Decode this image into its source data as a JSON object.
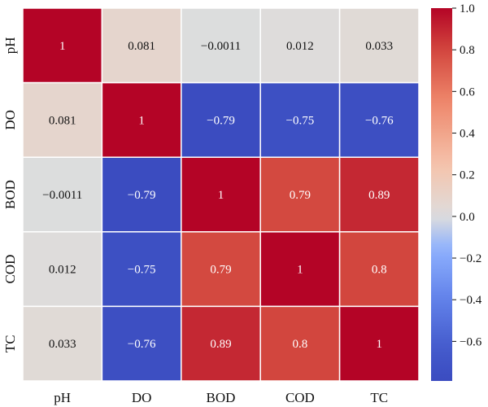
{
  "chart_data": {
    "type": "heatmap",
    "title": "",
    "xlabel": "",
    "ylabel": "",
    "x_categories": [
      "pH",
      "DO",
      "BOD",
      "COD",
      "TC"
    ],
    "y_categories": [
      "pH",
      "DO",
      "BOD",
      "COD",
      "TC"
    ],
    "values": [
      [
        1,
        0.081,
        -0.0011,
        0.012,
        0.033
      ],
      [
        0.081,
        1,
        -0.79,
        -0.75,
        -0.76
      ],
      [
        -0.0011,
        -0.79,
        1,
        0.79,
        0.89
      ],
      [
        0.012,
        -0.75,
        0.79,
        1,
        0.8
      ],
      [
        0.033,
        -0.76,
        0.89,
        0.8,
        1
      ]
    ],
    "cell_labels": [
      [
        "1",
        "0.081",
        "−0.0011",
        "0.012",
        "0.033"
      ],
      [
        "0.081",
        "1",
        "−0.79",
        "−0.75",
        "−0.76"
      ],
      [
        "−0.0011",
        "−0.79",
        "1",
        "0.79",
        "0.89"
      ],
      [
        "0.012",
        "−0.75",
        "0.79",
        "1",
        "0.8"
      ],
      [
        "0.033",
        "−0.76",
        "0.89",
        "0.8",
        "1"
      ]
    ],
    "colormap": "coolwarm",
    "colorbar": {
      "range": [
        -0.79,
        1.0
      ],
      "ticks": [
        1.0,
        0.8,
        0.6,
        0.4,
        0.2,
        0.0,
        -0.2,
        -0.4,
        -0.6
      ],
      "tick_labels": [
        "1.0",
        "0.8",
        "0.6",
        "0.4",
        "0.2",
        "0.0",
        "−0.2",
        "−0.4",
        "−0.6"
      ],
      "placement": "right"
    },
    "grid": true
  }
}
